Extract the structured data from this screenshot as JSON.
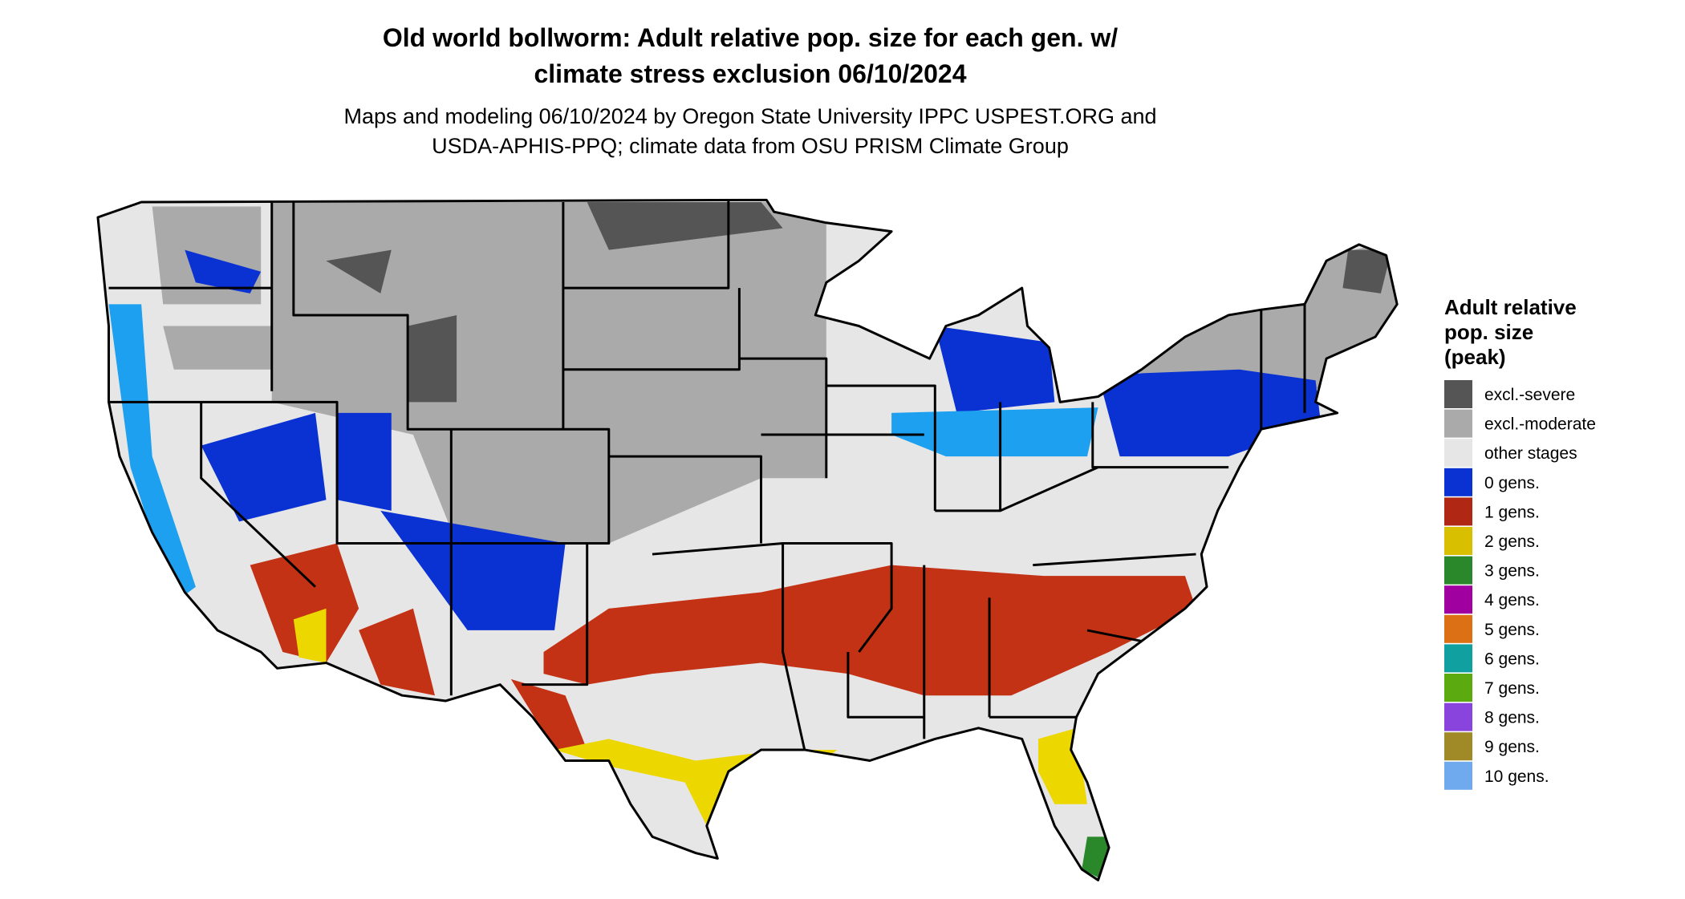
{
  "title_lines": [
    "Old world bollworm: Adult relative pop. size for each gen. w/",
    "climate stress exclusion 06/10/2024"
  ],
  "subtitle_lines": [
    "Maps and modeling 06/10/2024 by Oregon State University IPPC USPEST.ORG and",
    "USDA-APHIS-PPQ; climate data from OSU PRISM Climate Group"
  ],
  "legend": {
    "title_lines": [
      "Adult relative",
      "pop. size",
      "(peak)"
    ],
    "entries": [
      {
        "label": "excl.-severe",
        "color": "#555555"
      },
      {
        "label": "excl.-moderate",
        "color": "#aaaaaa"
      },
      {
        "label": "other stages",
        "color": "#e6e6e6"
      },
      {
        "label": "0 gens.",
        "color": "#0a32d2"
      },
      {
        "label": "1 gens.",
        "color": "#b02814"
      },
      {
        "label": "2 gens.",
        "color": "#d8c000"
      },
      {
        "label": "3 gens.",
        "color": "#2a882a"
      },
      {
        "label": "4 gens.",
        "color": "#a000a0"
      },
      {
        "label": "5 gens.",
        "color": "#dc7014"
      },
      {
        "label": "6 gens.",
        "color": "#10a0a0"
      },
      {
        "label": "7 gens.",
        "color": "#5aaa10"
      },
      {
        "label": "8 gens.",
        "color": "#8844dd"
      },
      {
        "label": "9 gens.",
        "color": "#a08a28"
      },
      {
        "label": "10 gens.",
        "color": "#70aaee"
      }
    ]
  }
}
